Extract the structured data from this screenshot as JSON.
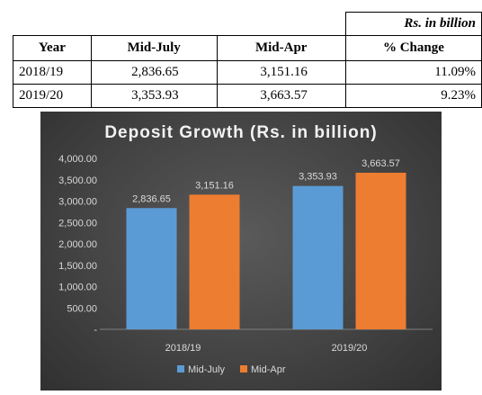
{
  "table": {
    "unit_label": "Rs. in billion",
    "headers": [
      "Year",
      "Mid-July",
      "Mid-Apr",
      "% Change"
    ],
    "rows": [
      [
        "2018/19",
        "2,836.65",
        "3,151.16",
        "11.09%"
      ],
      [
        "2019/20",
        "3,353.93",
        "3,663.57",
        "9.23%"
      ]
    ]
  },
  "chart_data": {
    "type": "bar",
    "title": "Deposit Growth (Rs. in billion)",
    "categories": [
      "2018/19",
      "2019/20"
    ],
    "series": [
      {
        "name": "Mid-July",
        "values": [
          2836.65,
          3353.93
        ],
        "color": "#5b9bd5",
        "labels": [
          "2,836.65",
          "3,353.93"
        ]
      },
      {
        "name": "Mid-Apr",
        "values": [
          3151.16,
          3663.57
        ],
        "color": "#ed7d31",
        "labels": [
          "3,151.16",
          "3,663.57"
        ]
      }
    ],
    "ylim": [
      0,
      4000
    ],
    "yticks": [
      0,
      500,
      1000,
      1500,
      2000,
      2500,
      3000,
      3500,
      4000
    ],
    "ytick_labels": [
      "-",
      "500.00",
      "1,000.00",
      "1,500.00",
      "2,000.00",
      "2,500.00",
      "3,000.00",
      "3,500.00",
      "4,000.00"
    ],
    "grid": false,
    "legend_position": "bottom",
    "xlabel": "",
    "ylabel": ""
  }
}
